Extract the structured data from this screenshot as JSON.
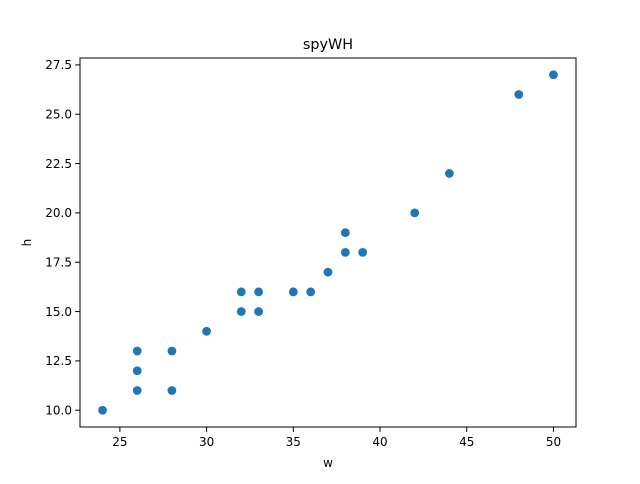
{
  "chart_data": {
    "type": "scatter",
    "title": "spyWH",
    "xlabel": "w",
    "ylabel": "h",
    "xlim": [
      22.7,
      51.3
    ],
    "ylim": [
      9.15,
      27.85
    ],
    "xticks": [
      25,
      30,
      35,
      40,
      45,
      50
    ],
    "xtick_labels": [
      "25",
      "30",
      "35",
      "40",
      "45",
      "50"
    ],
    "yticks": [
      10.0,
      12.5,
      15.0,
      17.5,
      20.0,
      22.5,
      25.0,
      27.5
    ],
    "ytick_labels": [
      "10.0",
      "12.5",
      "15.0",
      "17.5",
      "20.0",
      "22.5",
      "25.0",
      "27.5"
    ],
    "grid": false,
    "marker_color": "#1f77b4",
    "points": [
      {
        "x": 24,
        "y": 10
      },
      {
        "x": 26,
        "y": 11
      },
      {
        "x": 26,
        "y": 12
      },
      {
        "x": 26,
        "y": 13
      },
      {
        "x": 28,
        "y": 11
      },
      {
        "x": 28,
        "y": 13
      },
      {
        "x": 30,
        "y": 14
      },
      {
        "x": 32,
        "y": 15
      },
      {
        "x": 32,
        "y": 16
      },
      {
        "x": 33,
        "y": 15
      },
      {
        "x": 33,
        "y": 16
      },
      {
        "x": 35,
        "y": 16
      },
      {
        "x": 36,
        "y": 16
      },
      {
        "x": 37,
        "y": 17
      },
      {
        "x": 38,
        "y": 18
      },
      {
        "x": 38,
        "y": 19
      },
      {
        "x": 39,
        "y": 18
      },
      {
        "x": 42,
        "y": 20
      },
      {
        "x": 44,
        "y": 22
      },
      {
        "x": 48,
        "y": 26
      },
      {
        "x": 50,
        "y": 27
      }
    ]
  }
}
